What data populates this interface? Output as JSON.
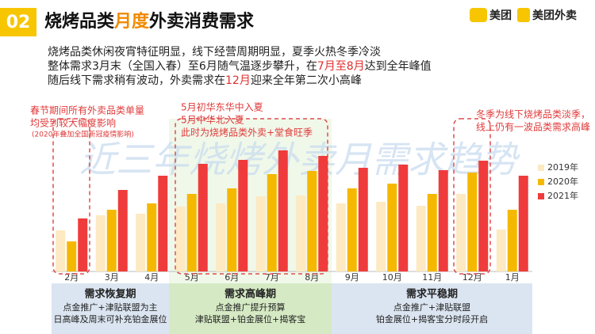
{
  "header": {
    "number": "02",
    "title_parts": [
      {
        "text": "烧烤品类",
        "highlight": false
      },
      {
        "text": "月度",
        "highlight": true
      },
      {
        "text": "外卖消费需求",
        "highlight": false
      }
    ],
    "logos": [
      "美团",
      "美团外卖"
    ]
  },
  "intro": [
    [
      {
        "text": "烧烤品类休闲夜宵特征明显，线下经营周期明显，夏季火热冬季冷淡",
        "highlight": false
      }
    ],
    [
      {
        "text": "整体需求3月末（全国入春）至6月随气温逐步攀升，在",
        "highlight": false
      },
      {
        "text": "7月至8月",
        "highlight": true
      },
      {
        "text": "达到全年峰值",
        "highlight": false
      }
    ],
    [
      {
        "text": "随后线下需求稍有波动，外卖需求在",
        "highlight": false
      },
      {
        "text": "12月",
        "highlight": true
      },
      {
        "text": "迎来全年第二次小高峰",
        "highlight": false
      }
    ]
  ],
  "chart_data": {
    "type": "bar",
    "watermark": "近三年烧烤外卖月需求趋势",
    "legend": "right",
    "categories": [
      "2月",
      "3月",
      "4月",
      "5月",
      "6月",
      "7月",
      "8月",
      "9月",
      "10月",
      "11月",
      "12月",
      "1月"
    ],
    "series": [
      {
        "name": "2019年",
        "color": "#fde9c2",
        "values": [
          52,
          71,
          73,
          82,
          86,
          95,
          96,
          86,
          88,
          83,
          98,
          53
        ]
      },
      {
        "name": "2020年",
        "color": "#f5b800",
        "values": [
          38,
          78,
          86,
          98,
          105,
          123,
          127,
          105,
          111,
          98,
          125,
          78
        ]
      },
      {
        "name": "2021年",
        "color": "#ef3b3b",
        "values": [
          67,
          103,
          121,
          136,
          141,
          153,
          146,
          131,
          135,
          128,
          140,
          121
        ]
      }
    ],
    "annotations": [
      {
        "lines": [
          "春节期间所有外卖品类单量",
          "均受到较大幅度影响"
        ],
        "note": "(2020年叠加全国新冠疫情影响)"
      },
      {
        "lines": [
          "5月初华东华中入夏",
          "5月中华北入夏",
          "此时为烧烤品类外卖+堂食旺季"
        ]
      },
      {
        "lines": [
          "冬季为线下烧烤品类淡季，",
          "线上仍有一波品类需求高峰"
        ]
      }
    ],
    "periods": [
      {
        "name": "需求恢复期",
        "lines": [
          "点金推广+津贴联盟为主",
          "日高峰及周末可补充铂金展位"
        ]
      },
      {
        "name": "需求高峰期",
        "lines": [
          "点金推广提升预算",
          "津贴联盟+铂金展位+揭客宝"
        ]
      },
      {
        "name": "需求平稳期",
        "lines": [
          "点金推广+津贴联盟",
          "铂金展位+揭客宝分时段开启"
        ]
      }
    ]
  }
}
